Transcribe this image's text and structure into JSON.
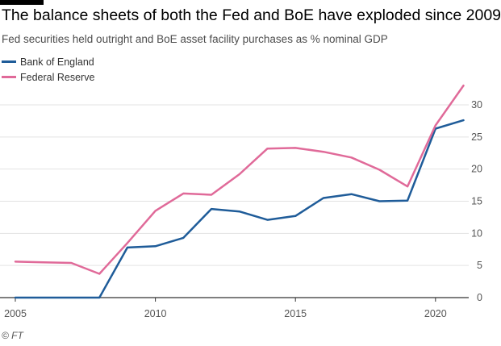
{
  "header": {
    "title": "The balance sheets of both the Fed and BoE have exploded since 2009",
    "subtitle": "Fed securities held outright and BoE asset facility purchases as % nominal GDP"
  },
  "source": "© FT",
  "chart_data": {
    "type": "line",
    "title": "The balance sheets of both the Fed and BoE have exploded since 2009",
    "subtitle": "Fed securities held outright and BoE asset facility purchases as % nominal GDP",
    "xlabel": "",
    "ylabel": "",
    "x": [
      2005,
      2006,
      2007,
      2008,
      2009,
      2010,
      2011,
      2012,
      2013,
      2014,
      2015,
      2016,
      2017,
      2018,
      2019,
      2020,
      2021
    ],
    "series": [
      {
        "name": "Bank of England",
        "color": "#1f5c99",
        "values": [
          0,
          0,
          0,
          0,
          7.8,
          8.0,
          9.3,
          13.8,
          13.4,
          12.1,
          12.7,
          15.5,
          16.1,
          15.0,
          15.1,
          26.3,
          27.6
        ]
      },
      {
        "name": "Federal Reserve",
        "color": "#e06a99",
        "values": [
          5.6,
          5.5,
          5.4,
          3.7,
          8.5,
          13.5,
          16.2,
          16.0,
          19.2,
          23.2,
          23.3,
          22.7,
          21.8,
          19.9,
          17.3,
          26.8,
          33.0
        ]
      }
    ],
    "xticks": [
      "2005",
      "2010",
      "2015",
      "2020"
    ],
    "yticks": [
      "0",
      "5",
      "10",
      "15",
      "20",
      "25",
      "30"
    ],
    "xlim": [
      2005,
      2021.1
    ],
    "ylim": [
      0,
      30
    ],
    "grid": true,
    "legend_position": "top-left"
  }
}
